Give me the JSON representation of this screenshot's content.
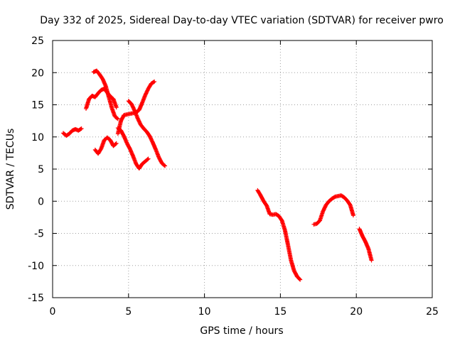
{
  "chart_data": {
    "type": "scatter",
    "title": "Day 332 of 2025, Sidereal Day-to-day VTEC variation (SDTVAR) for receiver pwro",
    "xlabel": "GPS time / hours",
    "ylabel": "SDTVAR / TECUs",
    "xlim": [
      0,
      25
    ],
    "ylim": [
      -15,
      25
    ],
    "xticks": [
      0,
      5,
      10,
      15,
      20,
      25
    ],
    "yticks": [
      -15,
      -10,
      -5,
      0,
      5,
      10,
      15,
      20,
      25
    ],
    "grid": true,
    "marker": "+",
    "color": "#ff0000",
    "series": [
      {
        "name": "s1",
        "x": [
          0.7,
          0.9,
          1.1,
          1.3,
          1.5,
          1.7,
          1.9
        ],
        "y": [
          10.6,
          10.2,
          10.5,
          11.0,
          11.2,
          11.0,
          11.3
        ]
      },
      {
        "name": "s2",
        "x": [
          2.2,
          2.4,
          2.6,
          2.8,
          3.0,
          3.2,
          3.4,
          3.6,
          3.8,
          4.0,
          4.2
        ],
        "y": [
          14.4,
          15.9,
          16.4,
          16.2,
          16.8,
          17.3,
          17.5,
          16.9,
          16.3,
          15.9,
          14.6
        ]
      },
      {
        "name": "s3",
        "x": [
          2.7,
          2.9,
          3.1,
          3.3,
          3.5,
          3.7,
          3.9,
          4.1,
          4.3
        ],
        "y": [
          20.1,
          20.3,
          19.7,
          19.0,
          17.9,
          16.2,
          14.5,
          13.2,
          12.8
        ]
      },
      {
        "name": "s4",
        "x": [
          2.8,
          3.0,
          3.2,
          3.4,
          3.6,
          3.8,
          4.0,
          4.2
        ],
        "y": [
          8.0,
          7.4,
          8.2,
          9.5,
          9.9,
          9.5,
          8.6,
          9.0
        ]
      },
      {
        "name": "s5",
        "x": [
          4.3,
          4.5,
          4.7,
          4.9,
          5.1,
          5.3,
          5.5,
          5.7,
          5.9,
          6.1,
          6.3
        ],
        "y": [
          11.4,
          11.0,
          10.1,
          9.0,
          8.1,
          7.0,
          5.8,
          5.1,
          5.8,
          6.2,
          6.6
        ]
      },
      {
        "name": "s6",
        "x": [
          4.3,
          4.5,
          4.7,
          4.9,
          5.1,
          5.3,
          5.5,
          5.7,
          5.9,
          6.1,
          6.3,
          6.5,
          6.7
        ],
        "y": [
          10.5,
          12.5,
          13.4,
          13.5,
          13.6,
          13.7,
          13.8,
          14.2,
          15.3,
          16.5,
          17.5,
          18.3,
          18.6
        ]
      },
      {
        "name": "s7",
        "x": [
          5.0,
          5.2,
          5.4,
          5.6,
          5.8,
          6.0,
          6.2,
          6.4,
          6.6,
          6.8,
          7.0,
          7.2,
          7.4
        ],
        "y": [
          15.6,
          15.1,
          14.1,
          12.9,
          11.9,
          11.3,
          10.8,
          10.1,
          9.1,
          8.0,
          6.8,
          5.9,
          5.5
        ]
      },
      {
        "name": "s8",
        "x": [
          13.5,
          13.7,
          13.9,
          14.1,
          14.3,
          14.5,
          14.7,
          14.9,
          15.1,
          15.3,
          15.5,
          15.7,
          15.9,
          16.1,
          16.3
        ],
        "y": [
          1.7,
          0.9,
          0.0,
          -0.7,
          -2.0,
          -2.1,
          -2.0,
          -2.3,
          -3.0,
          -4.5,
          -6.8,
          -9.2,
          -10.8,
          -11.7,
          -12.2
        ]
      },
      {
        "name": "s9",
        "x": [
          17.2,
          17.4,
          17.6,
          17.8,
          18.0,
          18.2,
          18.4,
          18.6,
          18.8,
          19.0,
          19.2,
          19.4,
          19.6,
          19.8
        ],
        "y": [
          -3.6,
          -3.5,
          -3.0,
          -1.6,
          -0.6,
          0.0,
          0.4,
          0.7,
          0.8,
          0.9,
          0.6,
          0.1,
          -0.6,
          -2.2
        ]
      },
      {
        "name": "s10",
        "x": [
          20.2,
          20.4,
          20.6,
          20.8,
          21.0
        ],
        "y": [
          -4.3,
          -5.4,
          -6.3,
          -7.4,
          -9.2
        ]
      }
    ]
  }
}
